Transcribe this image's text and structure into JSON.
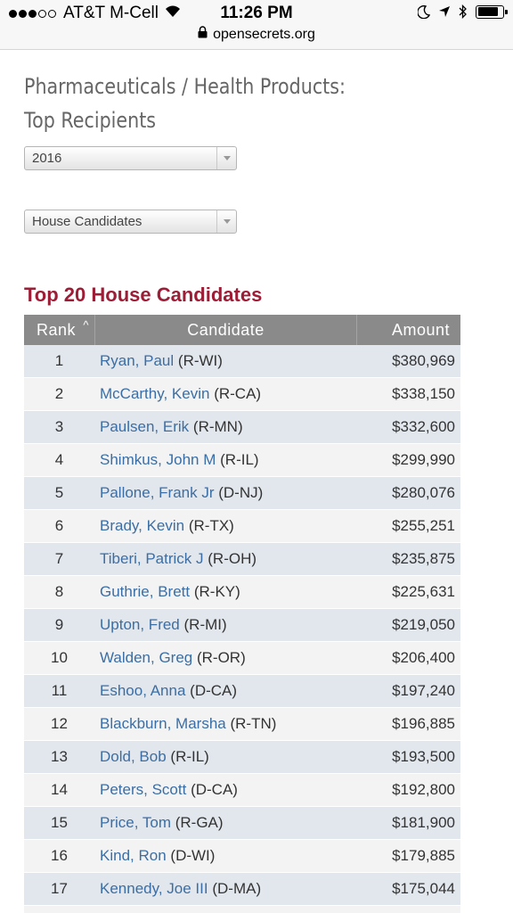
{
  "status_bar": {
    "carrier": "AT&T M-Cell",
    "time": "11:26 PM",
    "url": "opensecrets.org",
    "battery_level": 0.85
  },
  "page": {
    "title_line1": "Pharmaceuticals / Health Products:",
    "title_line2": "Top Recipients",
    "year_select": {
      "value": "2016"
    },
    "type_select": {
      "value": "House Candidates"
    },
    "section_heading": "Top 20 House Candidates"
  },
  "table": {
    "headers": {
      "rank": "Rank",
      "candidate": "Candidate",
      "amount": "Amount",
      "sort_glyph": "^"
    },
    "rows": [
      {
        "rank": "1",
        "name": "Ryan, Paul",
        "party": "(R-WI)",
        "amount": "$380,969"
      },
      {
        "rank": "2",
        "name": "McCarthy, Kevin",
        "party": "(R-CA)",
        "amount": "$338,150"
      },
      {
        "rank": "3",
        "name": "Paulsen, Erik",
        "party": "(R-MN)",
        "amount": "$332,600"
      },
      {
        "rank": "4",
        "name": "Shimkus, John M",
        "party": "(R-IL)",
        "amount": "$299,990"
      },
      {
        "rank": "5",
        "name": "Pallone, Frank Jr",
        "party": "(D-NJ)",
        "amount": "$280,076"
      },
      {
        "rank": "6",
        "name": "Brady, Kevin",
        "party": "(R-TX)",
        "amount": "$255,251"
      },
      {
        "rank": "7",
        "name": "Tiberi, Patrick J",
        "party": "(R-OH)",
        "amount": "$235,875"
      },
      {
        "rank": "8",
        "name": "Guthrie, Brett",
        "party": "(R-KY)",
        "amount": "$225,631"
      },
      {
        "rank": "9",
        "name": "Upton, Fred",
        "party": "(R-MI)",
        "amount": "$219,050"
      },
      {
        "rank": "10",
        "name": "Walden, Greg",
        "party": "(R-OR)",
        "amount": "$206,400"
      },
      {
        "rank": "11",
        "name": "Eshoo, Anna",
        "party": "(D-CA)",
        "amount": "$197,240"
      },
      {
        "rank": "12",
        "name": "Blackburn, Marsha",
        "party": "(R-TN)",
        "amount": "$196,885"
      },
      {
        "rank": "13",
        "name": "Dold, Bob",
        "party": "(R-IL)",
        "amount": "$193,500"
      },
      {
        "rank": "14",
        "name": "Peters, Scott",
        "party": "(D-CA)",
        "amount": "$192,800"
      },
      {
        "rank": "15",
        "name": "Price, Tom",
        "party": "(R-GA)",
        "amount": "$181,900"
      },
      {
        "rank": "16",
        "name": "Kind, Ron",
        "party": "(D-WI)",
        "amount": "$179,885"
      },
      {
        "rank": "17",
        "name": "Kennedy, Joe III",
        "party": "(D-MA)",
        "amount": "$175,044"
      },
      {
        "rank": "",
        "name": "",
        "party": "",
        "amount": ""
      }
    ]
  },
  "colors": {
    "heading": "#9d1c36",
    "link": "#3a6ea5",
    "header_bg": "#8a8a8a",
    "row_odd": "#e2e7ee",
    "row_even": "#f3f3f3"
  }
}
